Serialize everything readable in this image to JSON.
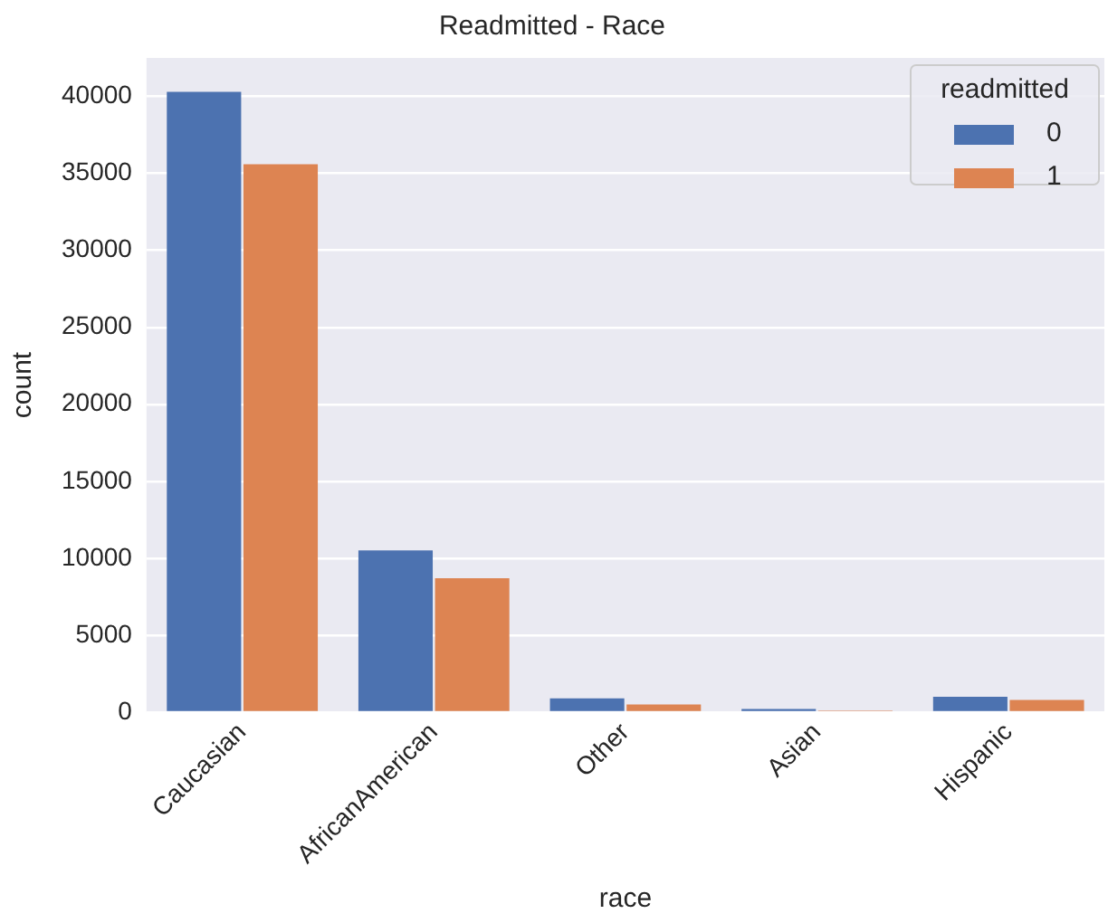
{
  "chart_data": {
    "type": "bar",
    "title": "Readmitted - Race",
    "xlabel": "race",
    "ylabel": "count",
    "legend_title": "readmitted",
    "categories": [
      "Caucasian",
      "AfricanAmerican",
      "Other",
      "Asian",
      "Hispanic"
    ],
    "series": [
      {
        "name": "0",
        "color": "#4c72b0",
        "values": [
          40300,
          10500,
          900,
          200,
          1000
        ]
      },
      {
        "name": "1",
        "color": "#dd8452",
        "values": [
          35600,
          8700,
          500,
          100,
          800
        ]
      }
    ],
    "ylim": [
      0,
      42500
    ],
    "yticks": [
      0,
      5000,
      10000,
      15000,
      20000,
      25000,
      30000,
      35000,
      40000
    ],
    "grid": "y",
    "legend": "top right"
  }
}
